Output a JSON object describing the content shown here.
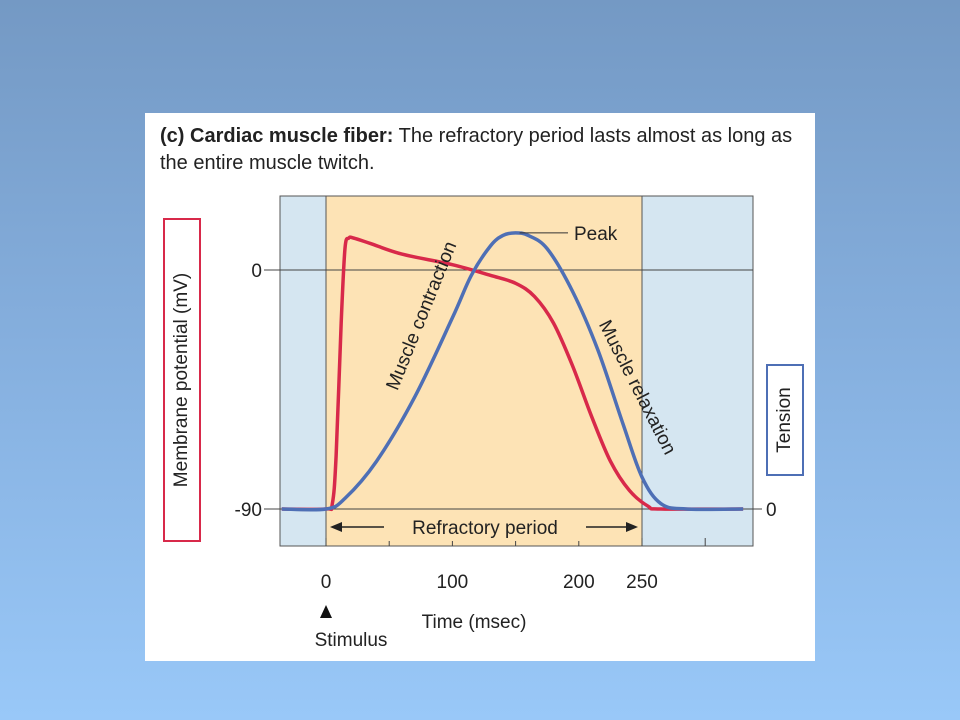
{
  "caption": {
    "bold": "(c) Cardiac muscle fiber:",
    "text": " The refractory period lasts almost as long as the entire muscle twitch."
  },
  "chart_data": {
    "type": "line",
    "xlabel": "Time (msec)",
    "ylabel": "Membrane potential (mV)",
    "y2label": "Tension",
    "xlim": [
      -35,
      330
    ],
    "ylim": [
      -90,
      20
    ],
    "x_ticks": [
      0,
      50,
      100,
      150,
      200,
      250,
      300
    ],
    "x_tick_labels": [
      "0",
      "100",
      "200",
      "250"
    ],
    "x_tick_label_values": [
      0,
      100,
      200,
      250
    ],
    "y_ticks": [
      {
        "value": 0,
        "label": "0"
      },
      {
        "value": -90,
        "label": "-90"
      }
    ],
    "y2_ticks": [
      {
        "value": -90,
        "label": "0"
      }
    ],
    "refractory_window": [
      0,
      250
    ],
    "series": [
      {
        "name": "Membrane potential",
        "color": "#d8294a",
        "points": [
          [
            -35,
            -90
          ],
          [
            0,
            -90
          ],
          [
            5,
            -88
          ],
          [
            8,
            -70
          ],
          [
            12,
            -20
          ],
          [
            15,
            8
          ],
          [
            18,
            12
          ],
          [
            22,
            12
          ],
          [
            35,
            10
          ],
          [
            60,
            6
          ],
          [
            100,
            2
          ],
          [
            130,
            -2
          ],
          [
            150,
            -5
          ],
          [
            165,
            -10
          ],
          [
            180,
            -20
          ],
          [
            195,
            -36
          ],
          [
            210,
            -55
          ],
          [
            225,
            -72
          ],
          [
            240,
            -83
          ],
          [
            255,
            -89
          ],
          [
            265,
            -90
          ],
          [
            330,
            -90
          ]
        ]
      },
      {
        "name": "Tension",
        "color": "#4e6fb5",
        "points": [
          [
            -35,
            -90
          ],
          [
            0,
            -90
          ],
          [
            15,
            -86
          ],
          [
            40,
            -72
          ],
          [
            70,
            -48
          ],
          [
            100,
            -18
          ],
          [
            115,
            -2
          ],
          [
            130,
            9
          ],
          [
            140,
            13
          ],
          [
            150,
            14
          ],
          [
            160,
            13
          ],
          [
            175,
            8
          ],
          [
            195,
            -8
          ],
          [
            215,
            -30
          ],
          [
            235,
            -58
          ],
          [
            250,
            -78
          ],
          [
            265,
            -88
          ],
          [
            285,
            -90
          ],
          [
            330,
            -90
          ]
        ]
      }
    ],
    "annotations": [
      {
        "text": "Peak"
      },
      {
        "text": "Muscle contraction"
      },
      {
        "text": "Muscle relaxation"
      },
      {
        "text": "Refractory period"
      },
      {
        "text": "Stimulus"
      }
    ],
    "colors": {
      "plot_background": "#d5e6f1",
      "refractory_fill": "#fde3b5",
      "grid": "#444444"
    }
  }
}
